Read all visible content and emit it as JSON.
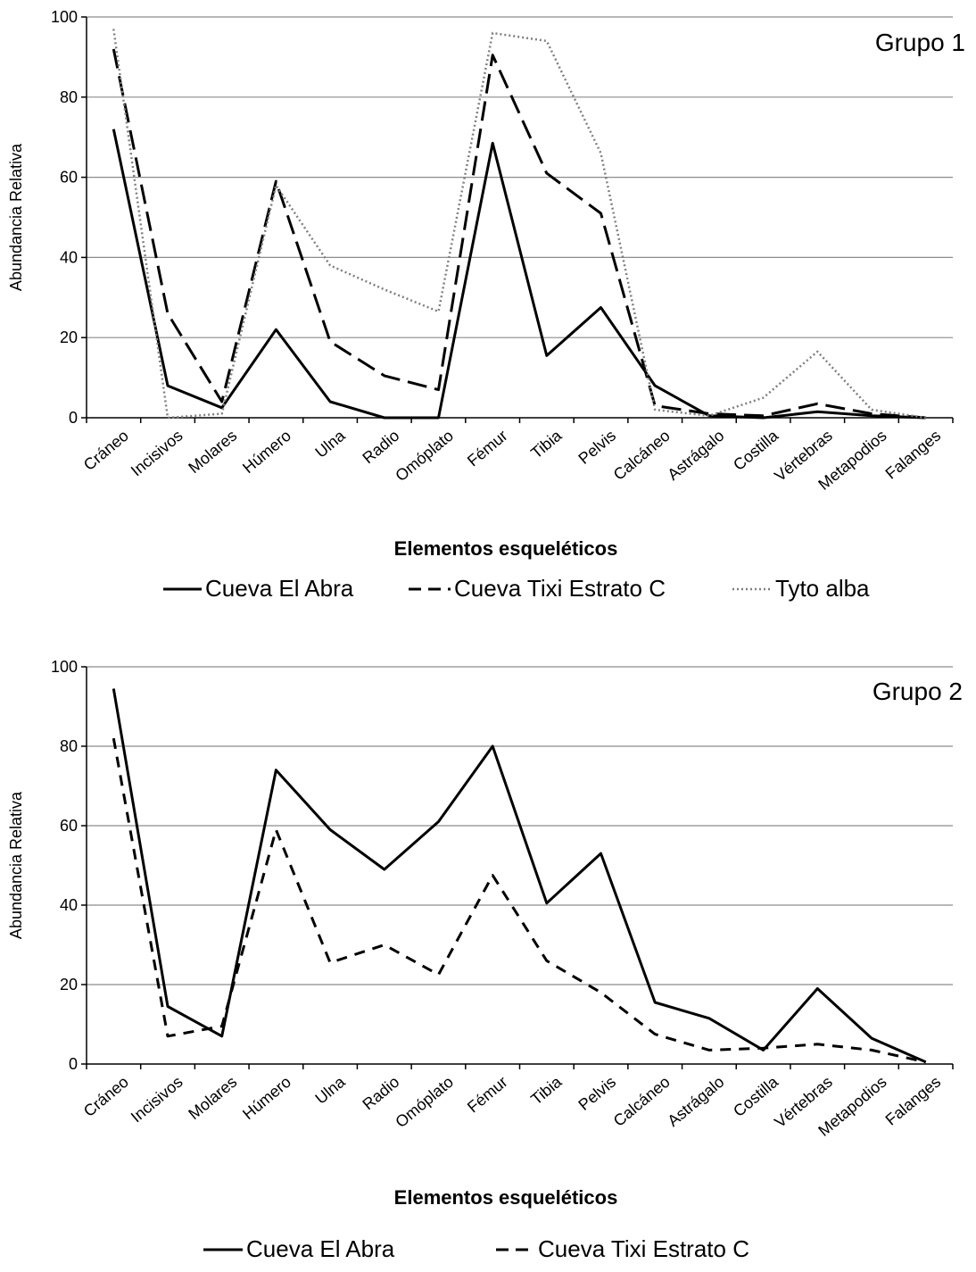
{
  "chart_data": [
    {
      "type": "line",
      "title": "Grupo 1",
      "xlabel": "Elementos esqueléticos",
      "ylabel": "Abundancia Relativa",
      "ylim": [
        0,
        100
      ],
      "yticks": [
        "0",
        "20",
        "40",
        "60",
        "80",
        "100"
      ],
      "grid": "horizontal",
      "legend_placement": "bottom",
      "categories": [
        "Cráneo",
        "Incisivos",
        "Molares",
        "Húmero",
        "Ulna",
        "Radio",
        "Omóplato",
        "Fémur",
        "Tibia",
        "Pelvis",
        "Calcáneo",
        "Astrágalo",
        "Costilla",
        "Vértebras",
        "Metapodios",
        "Falanges"
      ],
      "series": [
        {
          "name": "Cueva El Abra",
          "style": "solid",
          "color": "#000000",
          "values": [
            72,
            8,
            2.5,
            22,
            4,
            0,
            0,
            68.5,
            15.5,
            27.5,
            8,
            0.5,
            0,
            1.5,
            0.5,
            0
          ]
        },
        {
          "name": "Cueva Tixi Estrato C",
          "style": "dashed",
          "color": "#000000",
          "values": [
            92,
            26,
            4,
            59,
            19,
            10.5,
            7,
            90.5,
            61,
            51,
            3,
            1,
            0.5,
            3.5,
            1,
            0
          ]
        },
        {
          "name": "Tyto alba",
          "style": "dotted",
          "color": "#7f7f7f",
          "values": [
            97,
            0,
            1,
            58,
            38,
            32,
            26.5,
            96,
            94,
            66,
            2,
            0.5,
            5,
            16.5,
            2,
            0
          ]
        }
      ]
    },
    {
      "type": "line",
      "title": "Grupo 2",
      "xlabel": "Elementos esqueléticos",
      "ylabel": "Abundancia Relativa",
      "ylim": [
        0,
        100
      ],
      "yticks": [
        "0",
        "20",
        "40",
        "60",
        "80",
        "100"
      ],
      "grid": "horizontal",
      "legend_placement": "bottom",
      "categories": [
        "Cráneo",
        "Incisivos",
        "Molares",
        "Húmero",
        "Ulna",
        "Radio",
        "Omóplato",
        "Fémur",
        "Tibia",
        "Pelvis",
        "Calcáneo",
        "Astrágalo",
        "Costilla",
        "Vértebras",
        "Metapodios",
        "Falanges"
      ],
      "series": [
        {
          "name": "Cueva El Abra",
          "style": "solid",
          "color": "#000000",
          "values": [
            94.5,
            14.5,
            7,
            74,
            59,
            49,
            61,
            80,
            40.5,
            53,
            15.5,
            11.5,
            3.5,
            19,
            6.5,
            0.5
          ]
        },
        {
          "name": "Cueva Tixi Estrato C",
          "style": "shortdash",
          "color": "#000000",
          "values": [
            82,
            7,
            9.5,
            59,
            25.5,
            30,
            22.5,
            47.5,
            26,
            18,
            7.5,
            3.5,
            4,
            5,
            3.5,
            0.5
          ]
        }
      ]
    }
  ]
}
